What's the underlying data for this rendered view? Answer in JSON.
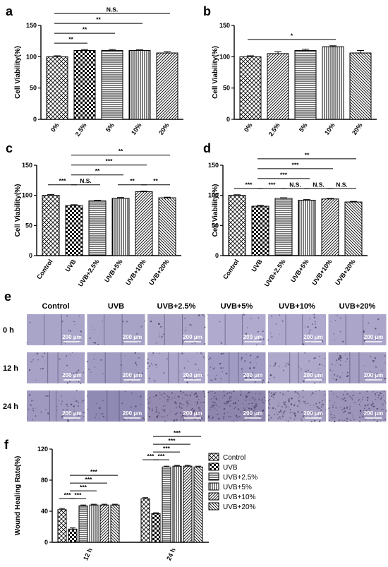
{
  "chart_data": [
    {
      "panel": "a",
      "type": "bar",
      "ylabel": "Cell Viability(%)",
      "ylim": [
        0,
        150
      ],
      "yticks": [
        0,
        50,
        100,
        150
      ],
      "categories": [
        "0%",
        "2.5%",
        "5%",
        "10%",
        "20%"
      ],
      "patterns": [
        "cross",
        "check",
        "hline",
        "vline",
        "diag"
      ],
      "values": [
        100,
        110,
        110,
        110,
        106
      ],
      "errors": [
        1.5,
        1.5,
        1.5,
        1,
        2
      ],
      "significance": [
        {
          "from": 0,
          "to": 1,
          "label": "**"
        },
        {
          "from": 0,
          "to": 2,
          "label": "**"
        },
        {
          "from": 0,
          "to": 3,
          "label": "**"
        },
        {
          "from": 0,
          "to": 4,
          "label": "N.S."
        }
      ]
    },
    {
      "panel": "b",
      "type": "bar",
      "ylabel": "Cell Viability(%)",
      "ylim": [
        0,
        150
      ],
      "yticks": [
        0,
        50,
        100,
        150
      ],
      "categories": [
        "0%",
        "2.5%",
        "5%",
        "10%",
        "20%"
      ],
      "patterns": [
        "cross",
        "diag",
        "hline",
        "vline",
        "diag2"
      ],
      "values": [
        100,
        105,
        110,
        116,
        106
      ],
      "errors": [
        1.5,
        3,
        2,
        1.5,
        4
      ],
      "significance": [
        {
          "from": 0,
          "to": 3,
          "label": "*"
        }
      ]
    },
    {
      "panel": "c",
      "type": "bar",
      "ylabel": "Cell Viability(%)",
      "ylim": [
        0,
        150
      ],
      "yticks": [
        0,
        50,
        100,
        150
      ],
      "categories": [
        "Control",
        "UVB",
        "UVB+2.5%",
        "UVB+5%",
        "UVB+10%",
        "UVB+20%"
      ],
      "patterns": [
        "cross",
        "check",
        "hline",
        "vline",
        "diag",
        "diag2"
      ],
      "values": [
        100,
        83,
        91,
        95,
        106,
        96
      ],
      "errors": [
        1.5,
        1.5,
        1,
        1.5,
        1,
        1
      ],
      "significance": [
        {
          "from": 0,
          "to": 1,
          "label": "***"
        },
        {
          "from": 1,
          "to": 2,
          "label": "N.S."
        },
        {
          "from": 1,
          "to": 3,
          "label": "**"
        },
        {
          "from": 1,
          "to": 4,
          "label": "***"
        },
        {
          "from": 1,
          "to": 5,
          "label": "**"
        },
        {
          "from": 3,
          "to": 4,
          "label": "**"
        },
        {
          "from": 4,
          "to": 5,
          "label": "**"
        }
      ]
    },
    {
      "panel": "d",
      "type": "bar",
      "ylabel": "Cell Viability(%)",
      "ylim": [
        0,
        150
      ],
      "yticks": [
        0,
        50,
        100,
        150
      ],
      "categories": [
        "Control",
        "UVB",
        "UVB+2.5%",
        "UVB+5%",
        "UVB+10%",
        "UVB+20%"
      ],
      "patterns": [
        "cross",
        "check",
        "hline",
        "vline",
        "diag",
        "diag2"
      ],
      "values": [
        100,
        82,
        95,
        92,
        94,
        89
      ],
      "errors": [
        1,
        1.5,
        1,
        1,
        1,
        1
      ],
      "significance": [
        {
          "from": 0,
          "to": 1,
          "label": "***"
        },
        {
          "from": 1,
          "to": 2,
          "label": "***"
        },
        {
          "from": 1,
          "to": 3,
          "label": "***"
        },
        {
          "from": 1,
          "to": 4,
          "label": "***"
        },
        {
          "from": 1,
          "to": 5,
          "label": "**"
        },
        {
          "from": 2,
          "to": 3,
          "label": "N.S."
        },
        {
          "from": 3,
          "to": 4,
          "label": "N.S."
        },
        {
          "from": 4,
          "to": 5,
          "label": "N.S."
        }
      ]
    },
    {
      "panel": "f",
      "type": "bar",
      "ylabel": "Wound Healing Rate(%)",
      "ylim": [
        0,
        120
      ],
      "yticks": [
        0,
        40,
        80,
        120
      ],
      "categories": [
        "12 h",
        "24 h"
      ],
      "series": [
        {
          "name": "Control",
          "pattern": "cross",
          "values": [
            42,
            56
          ],
          "errors": [
            1.5,
            1.5
          ]
        },
        {
          "name": "UVB",
          "pattern": "check",
          "values": [
            17,
            37
          ],
          "errors": [
            1.5,
            1
          ]
        },
        {
          "name": "UVB+2.5%",
          "pattern": "hline",
          "values": [
            47,
            97
          ],
          "errors": [
            1,
            1
          ]
        },
        {
          "name": "UVB+5%",
          "pattern": "vline",
          "values": [
            48,
            98
          ],
          "errors": [
            1,
            1
          ]
        },
        {
          "name": "UVB+10%",
          "pattern": "diag",
          "values": [
            48,
            98
          ],
          "errors": [
            1,
            1
          ]
        },
        {
          "name": "UVB+20%",
          "pattern": "diag2",
          "values": [
            48,
            97
          ],
          "errors": [
            1,
            1
          ]
        }
      ],
      "significance": [
        {
          "group": 0,
          "from": 0,
          "to": 1,
          "label": "***"
        },
        {
          "group": 0,
          "from": 1,
          "to": 2,
          "label": "***"
        },
        {
          "group": 0,
          "from": 1,
          "to": 3,
          "label": "***"
        },
        {
          "group": 0,
          "from": 1,
          "to": 4,
          "label": "***"
        },
        {
          "group": 0,
          "from": 1,
          "to": 5,
          "label": "***"
        },
        {
          "group": 1,
          "from": 0,
          "to": 1,
          "label": "***"
        },
        {
          "group": 1,
          "from": 1,
          "to": 2,
          "label": "***"
        },
        {
          "group": 1,
          "from": 1,
          "to": 3,
          "label": "***"
        },
        {
          "group": 1,
          "from": 1,
          "to": 4,
          "label": "***"
        },
        {
          "group": 1,
          "from": 1,
          "to": 5,
          "label": "***"
        }
      ]
    }
  ],
  "panel_labels": [
    "a",
    "b",
    "c",
    "d",
    "e",
    "f"
  ],
  "micrographs": {
    "panel": "e",
    "columns": [
      "Control",
      "UVB",
      "UVB+2.5%",
      "UVB+5%",
      "UVB+10%",
      "UVB+20%"
    ],
    "rows": [
      "0 h",
      "12 h",
      "24 h"
    ],
    "scale_bar": "200 μm",
    "row_colors": [
      [
        "#a9a5c9",
        "#a7a3c7",
        "#aba5c8",
        "#b0aace",
        "#aea9cd",
        "#aaa5c9"
      ],
      [
        "#a7a2c6",
        "#a19cc1",
        "#aba6ca",
        "#9f9bc2",
        "#aea8cb",
        "#a59fc4"
      ],
      [
        "#9f99bf",
        "#8f8ab3",
        "#958ab0",
        "#8e86ad",
        "#a49dc0",
        "#9d96ba"
      ]
    ],
    "cell_density": [
      [
        0.12,
        0.14,
        0.18,
        0.16,
        0.18,
        0.17
      ],
      [
        0.22,
        0.16,
        0.3,
        0.32,
        0.34,
        0.33
      ],
      [
        0.45,
        0.22,
        0.85,
        0.88,
        0.8,
        0.86
      ]
    ],
    "gap_fraction": [
      [
        0.6,
        0.62,
        0.62,
        0.6,
        0.58,
        0.6
      ],
      [
        0.35,
        0.55,
        0.35,
        0.32,
        0.3,
        0.32
      ],
      [
        0.22,
        0.42,
        0,
        0,
        0,
        0
      ]
    ]
  }
}
